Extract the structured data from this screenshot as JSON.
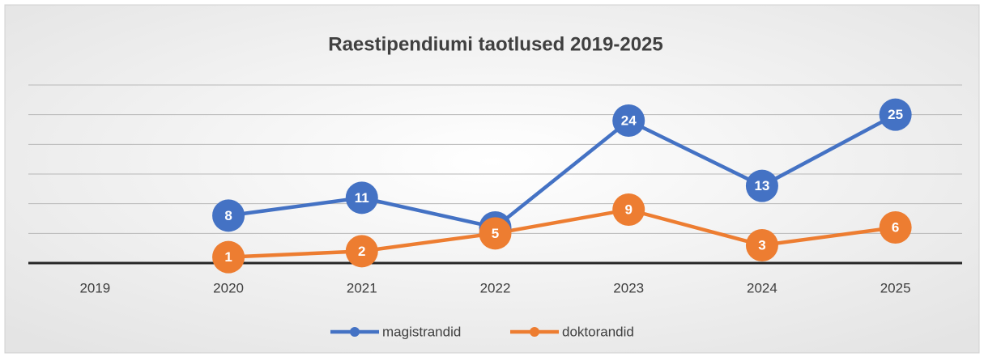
{
  "chart_data": {
    "type": "line",
    "title": "Raestipendiumi taotlused 2019-2025",
    "categories": [
      "2019",
      "2020",
      "2021",
      "2022",
      "2023",
      "2024",
      "2025"
    ],
    "series": [
      {
        "name": "magistrandid",
        "color": "#4472c4",
        "values": [
          null,
          8,
          11,
          6,
          24,
          13,
          25
        ]
      },
      {
        "name": "doktorandid",
        "color": "#ed7d31",
        "values": [
          null,
          1,
          2,
          5,
          9,
          3,
          6
        ]
      }
    ],
    "ylim": [
      0,
      30
    ],
    "yticks": [
      0,
      5,
      10,
      15,
      20,
      25,
      30
    ],
    "grid": true,
    "legend": "bottom"
  }
}
